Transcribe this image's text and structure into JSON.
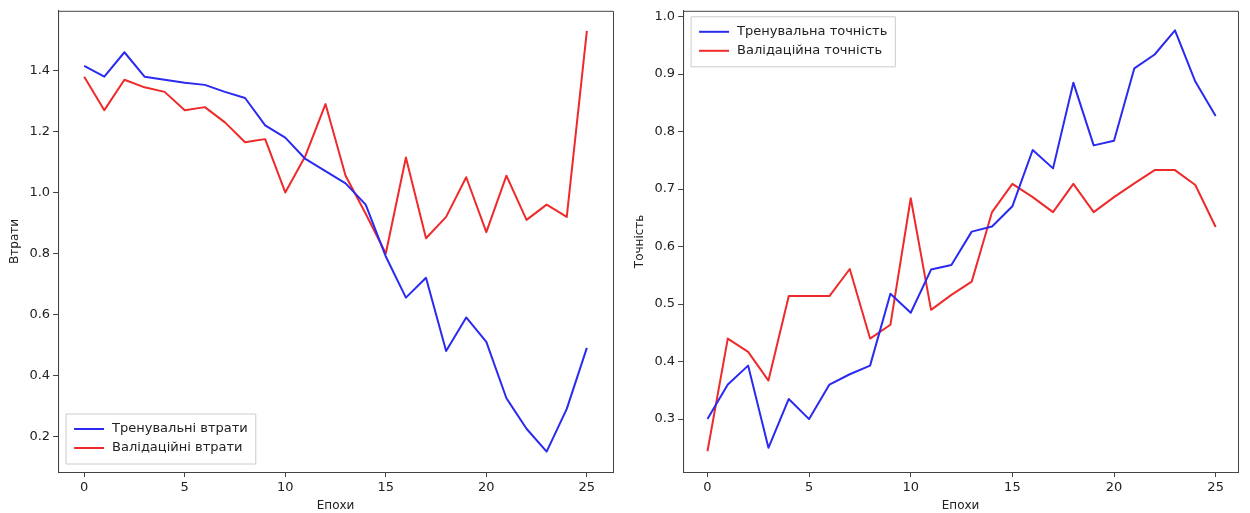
{
  "chart_data": [
    {
      "type": "line",
      "xlabel": "Епохи",
      "ylabel": "Втрати",
      "x": [
        0,
        1,
        2,
        3,
        4,
        5,
        6,
        7,
        8,
        9,
        10,
        11,
        12,
        13,
        14,
        15,
        16,
        17,
        18,
        19,
        20,
        21,
        22,
        23,
        24,
        25
      ],
      "series": [
        {
          "name": "Тренувальні втрати",
          "color": "#2a2af0",
          "values": [
            1.415,
            1.38,
            1.46,
            1.38,
            1.37,
            1.36,
            1.353,
            1.33,
            1.31,
            1.22,
            1.18,
            1.11,
            1.07,
            1.03,
            0.96,
            0.79,
            0.655,
            0.72,
            0.48,
            0.59,
            0.51,
            0.325,
            0.225,
            0.15,
            0.29,
            0.49
          ]
        },
        {
          "name": "Валідаційні втрати",
          "color": "#ee2a2a",
          "values": [
            1.38,
            1.27,
            1.37,
            1.345,
            1.33,
            1.27,
            1.28,
            1.23,
            1.165,
            1.175,
            1.0,
            1.12,
            1.29,
            1.055,
            0.93,
            0.8,
            1.115,
            0.85,
            0.92,
            1.05,
            0.87,
            1.055,
            0.91,
            0.96,
            0.92,
            1.53
          ]
        }
      ],
      "xlim": [
        -1.3,
        26.3
      ],
      "ylim": [
        0.083,
        1.596
      ],
      "xticks": [
        0,
        5,
        10,
        15,
        20,
        25
      ],
      "yticks": [
        0.2,
        0.4,
        0.6,
        0.8,
        {
          "value": 1,
          "label": "1.0"
        },
        1.2,
        1.4
      ],
      "grid": false,
      "legend": "bottom left"
    },
    {
      "type": "line",
      "xlabel": "Епохи",
      "ylabel": "Точність",
      "x": [
        0,
        1,
        2,
        3,
        4,
        5,
        6,
        7,
        8,
        9,
        10,
        11,
        12,
        13,
        14,
        15,
        16,
        17,
        18,
        19,
        20,
        21,
        22,
        23,
        24,
        25
      ],
      "series": [
        {
          "name": "Тренувальна точність",
          "color": "#2a2af0",
          "values": [
            0.3,
            0.36,
            0.393,
            0.25,
            0.335,
            0.3,
            0.36,
            0.378,
            0.393,
            0.518,
            0.485,
            0.56,
            0.568,
            0.626,
            0.635,
            0.67,
            0.768,
            0.736,
            0.885,
            0.776,
            0.784,
            0.91,
            0.934,
            0.976,
            0.887,
            0.827
          ]
        },
        {
          "name": "Валідаційна точність",
          "color": "#ee2a2a",
          "values": [
            0.244,
            0.44,
            0.417,
            0.367,
            0.514,
            0.514,
            0.514,
            0.561,
            0.44,
            0.464,
            0.684,
            0.49,
            0.516,
            0.539,
            0.66,
            0.709,
            0.686,
            0.66,
            0.709,
            0.66,
            0.686,
            0.71,
            0.733,
            0.733,
            0.707,
            0.634
          ]
        }
      ],
      "xlim": [
        -1.2,
        26.1
      ],
      "ylim": [
        0.208,
        1.01
      ],
      "xticks": [
        0,
        5,
        10,
        15,
        20,
        25
      ],
      "yticks": [
        0.3,
        0.4,
        0.5,
        0.6,
        0.7,
        0.8,
        0.9,
        {
          "value": 1,
          "label": "1.0"
        }
      ],
      "grid": false,
      "legend": "top left"
    }
  ]
}
